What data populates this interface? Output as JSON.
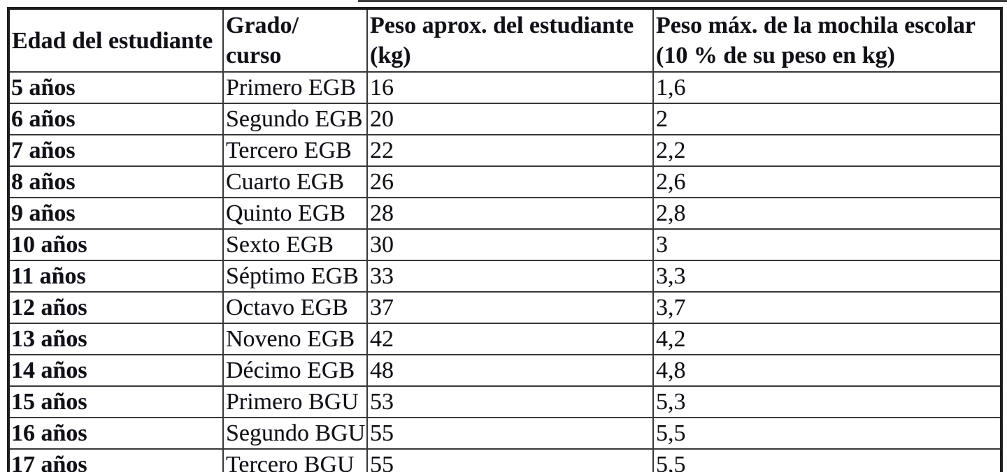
{
  "document": {
    "background_color": "#ffffff",
    "text_color": "#101016",
    "border_color": "#383838",
    "outer_border_color": "#1d1d1d"
  },
  "table": {
    "headers": [
      {
        "line1": "Edad del estudiante",
        "line2": ""
      },
      {
        "line1": "Grado/",
        "line2": "curso"
      },
      {
        "line1": "Peso aprox. del estudiante",
        "line2": "(kg)"
      },
      {
        "line1": "Peso máx. de la mochila escolar",
        "line2": "(10 % de su peso en kg)"
      }
    ],
    "rows": [
      {
        "edad": "5 años",
        "grado": "Primero EGB",
        "peso_kg": "16",
        "mochila_kg": "1,6"
      },
      {
        "edad": "6 años",
        "grado": "Segundo EGB",
        "peso_kg": "20",
        "mochila_kg": "2"
      },
      {
        "edad": "7 años",
        "grado": "Tercero EGB",
        "peso_kg": "22",
        "mochila_kg": "2,2"
      },
      {
        "edad": "8 años",
        "grado": "Cuarto EGB",
        "peso_kg": "26",
        "mochila_kg": "2,6"
      },
      {
        "edad": "9 años",
        "grado": "Quinto EGB",
        "peso_kg": "28",
        "mochila_kg": "2,8"
      },
      {
        "edad": "10 años",
        "grado": "Sexto EGB",
        "peso_kg": "30",
        "mochila_kg": "3"
      },
      {
        "edad": "11 años",
        "grado": "Séptimo EGB",
        "peso_kg": "33",
        "mochila_kg": "3,3"
      },
      {
        "edad": "12 años",
        "grado": "Octavo EGB",
        "peso_kg": "37",
        "mochila_kg": "3,7"
      },
      {
        "edad": "13 años",
        "grado": "Noveno EGB",
        "peso_kg": "42",
        "mochila_kg": "4,2"
      },
      {
        "edad": "14 años",
        "grado": "Décimo EGB",
        "peso_kg": "48",
        "mochila_kg": "4,8"
      },
      {
        "edad": "15 años",
        "grado": "Primero BGU",
        "peso_kg": "53",
        "mochila_kg": "5,3"
      },
      {
        "edad": "16 años",
        "grado": "Segundo BGU",
        "peso_kg": "55",
        "mochila_kg": "5,5"
      },
      {
        "edad": "17 años",
        "grado": "Tercero BGU",
        "peso_kg": "55",
        "mochila_kg": "5,5"
      }
    ]
  }
}
